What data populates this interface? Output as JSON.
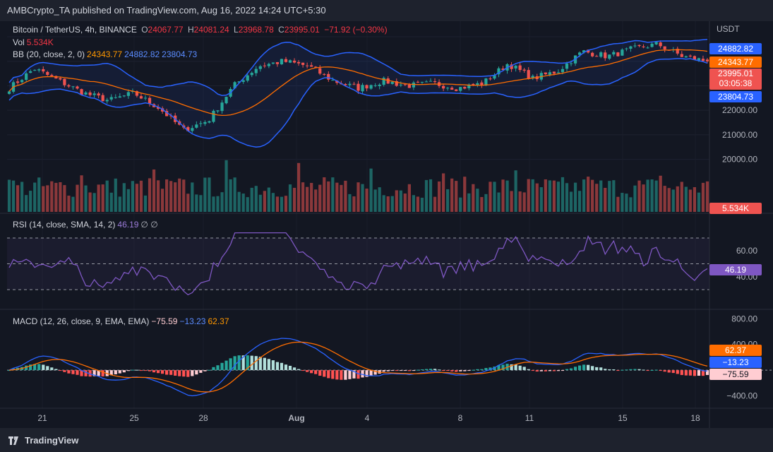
{
  "header": {
    "publisher": "AMBCrypto_TA published on TradingView.com, Aug 16, 2022 14:24 UTC+5:30"
  },
  "symbol": {
    "name": "Bitcoin / TetherUS, 4h, BINANCE",
    "o_label": "O",
    "o": "24067.77",
    "h_label": "H",
    "h": "24081.24",
    "l_label": "L",
    "l": "23968.78",
    "c_label": "C",
    "c": "23995.01",
    "change": "−71.92 (−0.30%)"
  },
  "vol": {
    "label": "Vol",
    "value": "5.534K"
  },
  "bb": {
    "label": "BB (20, close, 2, 0)",
    "basis": "24343.77",
    "upper": "24882.82",
    "lower": "23804.73"
  },
  "rsi": {
    "label": "RSI (14, close, SMA, 14, 2)",
    "value": "46.19",
    "extras": "∅ ∅"
  },
  "macd": {
    "label": "MACD (12, 26, close, 9, EMA, EMA)",
    "hist": "−75.59",
    "macd": "−13.23",
    "signal": "62.37"
  },
  "price_axis": {
    "currency": "USDT",
    "ticks": [
      "23000.00",
      "22000.00",
      "21000.00",
      "20000.00"
    ]
  },
  "rsi_axis": {
    "ticks": [
      "60.00",
      "40.00"
    ]
  },
  "macd_axis": {
    "ticks": [
      "800.00",
      "400.00",
      "−400.00"
    ]
  },
  "badges": {
    "upper": "24882.82",
    "basis": "24343.77",
    "price": "23995.01",
    "timer": "03:05:38",
    "lower": "23804.73",
    "vol": "5.534K",
    "rsi": "46.19",
    "signal": "62.37",
    "macd": "−13.23",
    "hist": "−75.59"
  },
  "x_axis": {
    "labels": [
      "21",
      "25",
      "28",
      "Aug",
      "4",
      "8",
      "11",
      "15",
      "18"
    ]
  },
  "footer": {
    "brand": "TradingView"
  },
  "colors": {
    "up": "#26a69a",
    "down": "#ef5350",
    "bb_basis": "#ff6d00",
    "bb_bands": "#2962ff",
    "rsi": "#7e57c2",
    "macd": "#2962ff",
    "signal": "#ff6d00",
    "hist_up_strong": "#26a69a",
    "hist_up_weak": "#b2dfdb",
    "hist_down_strong": "#ff5252",
    "hist_down_weak": "#ffcdd2"
  },
  "chart_data": {
    "type": "candlestick",
    "ylim": [
      19000,
      25500
    ],
    "series_meta": "BTCUSDT 4h",
    "keypoints": [
      {
        "x": "Jul 19",
        "close": 22900
      },
      {
        "x": "Jul 20",
        "close": 23700
      },
      {
        "x": "Jul 21",
        "close": 23200
      },
      {
        "x": "Jul 22",
        "close": 22700
      },
      {
        "x": "Jul 23",
        "close": 22400
      },
      {
        "x": "Jul 24",
        "close": 22700
      },
      {
        "x": "Jul 25",
        "close": 22100
      },
      {
        "x": "Jul 26",
        "close": 21200
      },
      {
        "x": "Jul 27",
        "close": 21600
      },
      {
        "x": "Jul 28",
        "close": 23000
      },
      {
        "x": "Jul 29",
        "close": 23800
      },
      {
        "x": "Jul 30",
        "close": 24000
      },
      {
        "x": "Jul 31",
        "close": 23800
      },
      {
        "x": "Aug 1",
        "close": 23200
      },
      {
        "x": "Aug 2",
        "close": 22900
      },
      {
        "x": "Aug 3",
        "close": 23200
      },
      {
        "x": "Aug 4",
        "close": 23000
      },
      {
        "x": "Aug 5",
        "close": 23100
      },
      {
        "x": "Aug 6",
        "close": 22900
      },
      {
        "x": "Aug 7",
        "close": 23100
      },
      {
        "x": "Aug 8",
        "close": 23900
      },
      {
        "x": "Aug 9",
        "close": 23300
      },
      {
        "x": "Aug 10",
        "close": 23600
      },
      {
        "x": "Aug 11",
        "close": 24400
      },
      {
        "x": "Aug 12",
        "close": 24200
      },
      {
        "x": "Aug 13",
        "close": 24500
      },
      {
        "x": "Aug 14",
        "close": 24700
      },
      {
        "x": "Aug 15",
        "close": 24200
      },
      {
        "x": "Aug 16",
        "close": 23995
      }
    ],
    "bollinger": {
      "length": 20,
      "mult": 2,
      "last": {
        "basis": 24343.77,
        "upper": 24882.82,
        "lower": 23804.73
      }
    },
    "volume": {
      "last": 5534
    },
    "rsi": {
      "ylim": [
        20,
        80
      ],
      "bands": [
        70,
        50,
        30
      ],
      "last": 46.19
    },
    "macd": {
      "ylim": [
        -600,
        900
      ],
      "last": {
        "macd": -13.23,
        "signal": 62.37,
        "hist": -75.59
      }
    }
  }
}
